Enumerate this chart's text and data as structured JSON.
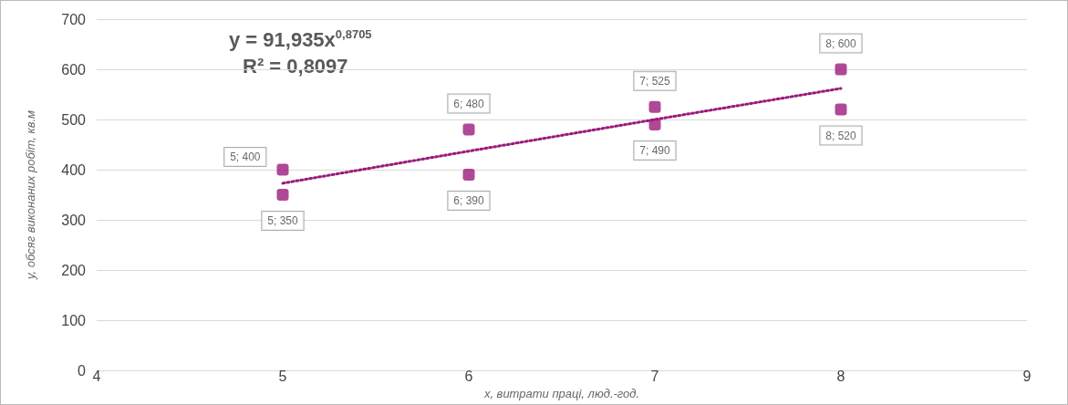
{
  "chart_data": {
    "type": "scatter",
    "xlabel": "x, витрати праці, люд.-год.",
    "ylabel": "y, обсяг виконаних робіт, кв.м",
    "annotations": [
      "y = 91,935x$^{0,8705}$",
      "R² = 0,8097"
    ],
    "series": [
      {
        "color": "#9b1b7a",
        "marker": "square",
        "x": [
          5,
          5,
          6,
          6,
          7,
          7,
          8,
          8
        ],
        "values": [
          400,
          350,
          480,
          390,
          525,
          490,
          600,
          520
        ],
        "value_labels": [
          "5; 400",
          "5; 350",
          "6; 480",
          "6; 390",
          "7; 525",
          "7; 490",
          "8; 600",
          "8; 520"
        ]
      },
      {
        "type": "line",
        "color": "#9b1b7a",
        "line_style": "dotted",
        "marker": "none",
        "x": [
          5,
          6,
          7,
          8
        ],
        "values": [
          373,
          437,
          500,
          562
        ]
      }
    ],
    "xlim": [
      4,
      9
    ],
    "xticks": [
      4,
      5,
      6,
      7,
      8,
      9
    ],
    "ylim": [
      0,
      700
    ],
    "yticks": [
      0,
      100,
      200,
      300,
      400,
      500,
      600,
      700
    ],
    "grid": "y"
  }
}
